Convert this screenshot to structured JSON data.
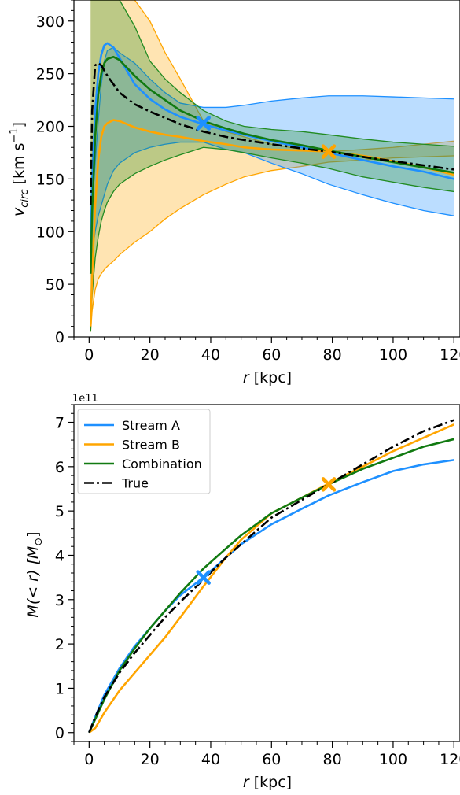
{
  "chart_data": [
    {
      "type": "line",
      "xlabel_var": "r",
      "xlabel_unit": " [kpc]",
      "ylabel_var": "v",
      "ylabel_sub": "circ",
      "ylabel_unit_main": " [km s",
      "ylabel_unit_sup": "−1",
      "ylabel_unit_end": "]",
      "xlim": [
        -5,
        122
      ],
      "ylim": [
        0,
        320
      ],
      "xticks": [
        0,
        20,
        40,
        60,
        80,
        100,
        120
      ],
      "yticks": [
        0,
        50,
        100,
        150,
        200,
        250,
        300
      ],
      "grid": false,
      "x": [
        0.5,
        1,
        2,
        3,
        4,
        5,
        6,
        8,
        10,
        15,
        20,
        25,
        30,
        37.6,
        45,
        51,
        60,
        70,
        78.8,
        90,
        100,
        110,
        120
      ],
      "bands": [
        {
          "name": "Stream B",
          "color": "#FFA500",
          "lower": [
            5,
            25,
            45,
            55,
            60,
            64,
            67,
            72,
            78,
            90,
            100,
            112,
            122,
            135,
            145,
            152,
            158,
            162,
            166,
            168,
            170,
            171,
            172
          ],
          "upper": [
            320,
            320,
            320,
            320,
            320,
            320,
            320,
            320,
            320,
            320,
            300,
            270,
            245,
            205,
            195,
            190,
            183,
            178,
            176,
            178,
            180,
            183,
            186
          ]
        },
        {
          "name": "Stream A",
          "color": "#1E90FF",
          "lower": [
            60,
            80,
            100,
            115,
            125,
            135,
            145,
            158,
            165,
            175,
            180,
            183,
            185,
            185,
            178,
            175,
            165,
            155,
            145,
            135,
            127,
            120,
            115
          ],
          "upper": [
            75,
            125,
            165,
            205,
            240,
            262,
            272,
            275,
            270,
            260,
            245,
            232,
            222,
            218,
            218,
            220,
            224,
            227,
            229,
            229,
            228,
            227,
            226
          ]
        },
        {
          "name": "Combination",
          "color": "#228B22",
          "lower": [
            5,
            40,
            75,
            95,
            110,
            120,
            128,
            138,
            145,
            155,
            162,
            168,
            173,
            180,
            178,
            175,
            170,
            165,
            160,
            152,
            147,
            142,
            138
          ],
          "upper": [
            320,
            320,
            320,
            320,
            320,
            320,
            320,
            320,
            320,
            295,
            262,
            245,
            232,
            215,
            205,
            200,
            197,
            195,
            192,
            188,
            185,
            183,
            181
          ]
        }
      ],
      "series": [
        {
          "name": "Stream A",
          "color": "#1E90FF",
          "values": [
            80,
            150,
            215,
            250,
            268,
            277,
            279,
            275,
            265,
            240,
            226,
            216,
            209,
            202,
            196,
            192,
            186,
            180,
            175,
            168,
            162,
            157,
            150
          ]
        },
        {
          "name": "Stream B",
          "color": "#FFA500",
          "values": [
            10,
            60,
            125,
            168,
            190,
            200,
            203,
            206,
            205,
            199,
            195,
            192,
            190,
            186,
            183,
            180,
            178,
            177,
            176,
            172,
            167,
            161,
            154
          ]
        },
        {
          "name": "Combination",
          "color": "#117A11",
          "values": [
            60,
            120,
            190,
            230,
            250,
            260,
            264,
            266,
            263,
            248,
            235,
            225,
            215,
            205,
            198,
            193,
            187,
            182,
            177,
            171,
            166,
            161,
            156
          ]
        },
        {
          "name": "True",
          "color": "#000000",
          "dash": "dashdot",
          "values": [
            125,
            215,
            258,
            260,
            258,
            253,
            248,
            240,
            232,
            221,
            214,
            208,
            202,
            195,
            190,
            187,
            183,
            179,
            176,
            171,
            167,
            163,
            159
          ]
        }
      ],
      "markers": [
        {
          "series": "Stream A",
          "x": 37.6,
          "y": 203,
          "color": "#1E90FF"
        },
        {
          "series": "Stream B",
          "x": 78.8,
          "y": 176,
          "color": "#FFA500"
        }
      ]
    },
    {
      "type": "line",
      "offset_label": "1e11",
      "xlabel_var": "r",
      "xlabel_unit": " [kpc]",
      "ylabel_pre": "M(< r) [M",
      "ylabel_sub": "⊙",
      "ylabel_end": "]",
      "xlim": [
        -5,
        122
      ],
      "ylim": [
        -0.2,
        7.4
      ],
      "xticks": [
        0,
        20,
        40,
        60,
        80,
        100,
        120
      ],
      "yticks": [
        0,
        1,
        2,
        3,
        4,
        5,
        6,
        7
      ],
      "grid": false,
      "legend": "top-left",
      "x": [
        0,
        2,
        5,
        10,
        15,
        20,
        25,
        30,
        37.6,
        45,
        50,
        60,
        70,
        78.8,
        90,
        100,
        110,
        120
      ],
      "series": [
        {
          "name": "Stream A",
          "color": "#1E90FF",
          "values": [
            0,
            0.35,
            0.85,
            1.45,
            1.95,
            2.35,
            2.75,
            3.1,
            3.5,
            3.95,
            4.25,
            4.7,
            5.05,
            5.35,
            5.65,
            5.9,
            6.05,
            6.15
          ]
        },
        {
          "name": "Stream B",
          "color": "#FFA500",
          "values": [
            0,
            0.1,
            0.45,
            0.95,
            1.35,
            1.75,
            2.15,
            2.6,
            3.3,
            3.95,
            4.35,
            4.95,
            5.3,
            5.62,
            6.0,
            6.35,
            6.65,
            6.95
          ]
        },
        {
          "name": "Combination",
          "color": "#117A11",
          "values": [
            0,
            0.3,
            0.75,
            1.4,
            1.9,
            2.35,
            2.75,
            3.15,
            3.7,
            4.15,
            4.45,
            4.95,
            5.3,
            5.6,
            5.95,
            6.2,
            6.45,
            6.62
          ]
        },
        {
          "name": "True",
          "color": "#000000",
          "dash": "dashdot",
          "values": [
            0,
            0.35,
            0.8,
            1.35,
            1.8,
            2.2,
            2.6,
            2.95,
            3.45,
            3.95,
            4.25,
            4.85,
            5.25,
            5.6,
            6.05,
            6.45,
            6.8,
            7.05
          ]
        }
      ],
      "markers": [
        {
          "series": "Stream A",
          "x": 37.6,
          "y": 3.5,
          "color": "#1E90FF"
        },
        {
          "series": "Stream B",
          "x": 78.8,
          "y": 5.6,
          "color": "#FFA500"
        }
      ]
    }
  ]
}
